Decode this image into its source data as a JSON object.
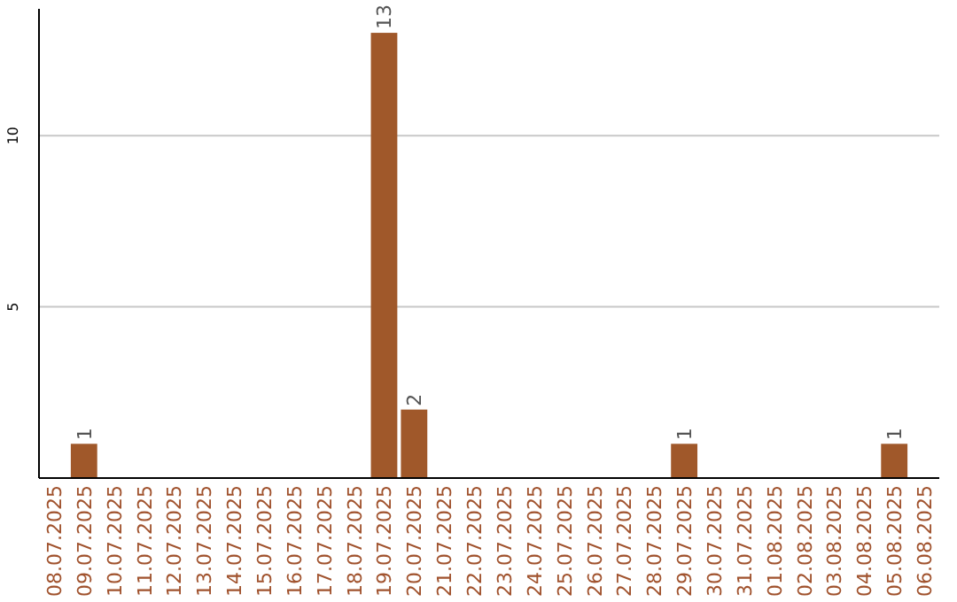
{
  "chart_data": {
    "type": "bar",
    "categories": [
      "08.07.2025",
      "09.07.2025",
      "10.07.2025",
      "11.07.2025",
      "12.07.2025",
      "13.07.2025",
      "14.07.2025",
      "15.07.2025",
      "16.07.2025",
      "17.07.2025",
      "18.07.2025",
      "19.07.2025",
      "20.07.2025",
      "21.07.2025",
      "22.07.2025",
      "23.07.2025",
      "24.07.2025",
      "25.07.2025",
      "26.07.2025",
      "27.07.2025",
      "28.07.2025",
      "29.07.2025",
      "30.07.2025",
      "31.07.2025",
      "01.08.2025",
      "02.08.2025",
      "03.08.2025",
      "04.08.2025",
      "05.08.2025",
      "06.08.2025"
    ],
    "values": [
      0,
      1,
      0,
      0,
      0,
      0,
      0,
      0,
      0,
      0,
      0,
      13,
      2,
      0,
      0,
      0,
      0,
      0,
      0,
      0,
      0,
      1,
      0,
      0,
      0,
      0,
      0,
      0,
      1,
      0
    ],
    "value_labels": [
      null,
      "1",
      null,
      null,
      null,
      null,
      null,
      null,
      null,
      null,
      null,
      "13",
      "2",
      null,
      null,
      null,
      null,
      null,
      null,
      null,
      null,
      "1",
      null,
      null,
      null,
      null,
      null,
      null,
      "1",
      null
    ],
    "color": "#a0582a",
    "ylim": [
      0,
      13.7
    ],
    "yticks": [
      5,
      10
    ],
    "grid": "y"
  }
}
